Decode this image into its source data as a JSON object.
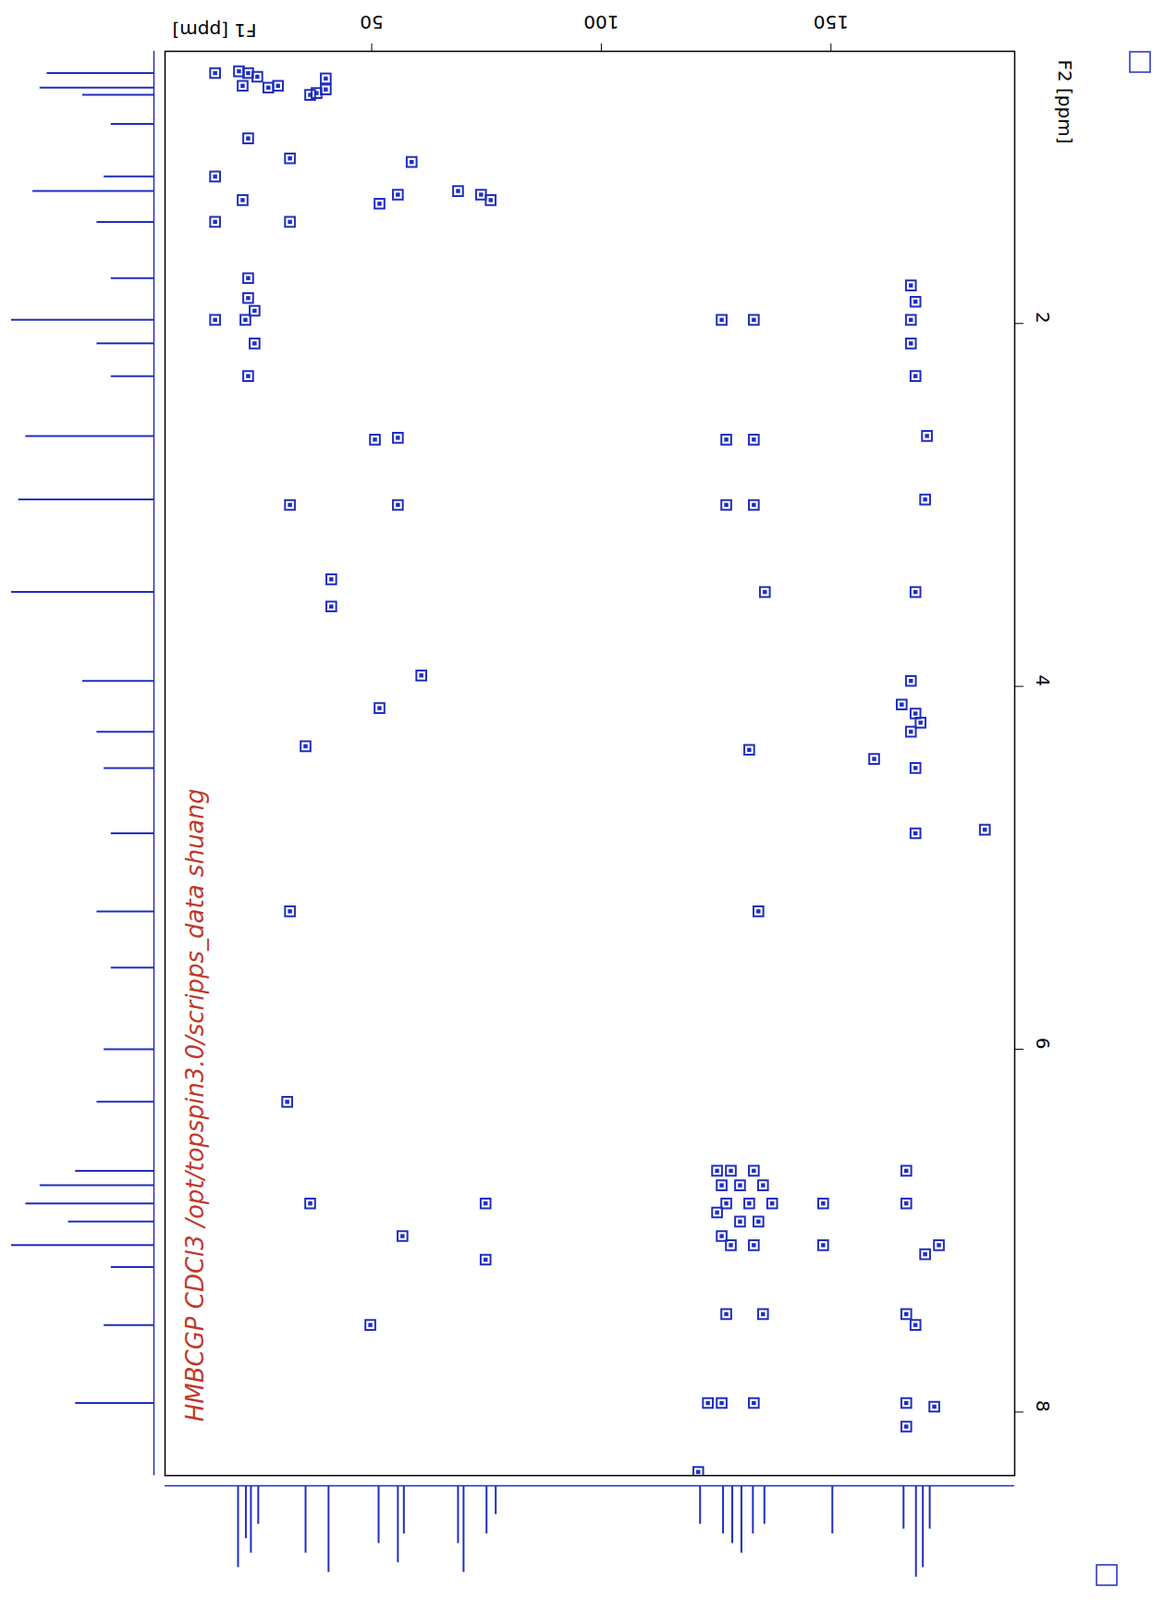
{
  "chart_data": {
    "type": "scatter",
    "annotation": "HMBCGP CDCl3 /opt/topspin3.0/scripps_data shuang",
    "xlabel": "F1 [ppm]",
    "ylabel": "F2 [ppm]",
    "xlim": [
      5,
      190
    ],
    "ylim": [
      0.5,
      8.35
    ],
    "xticks": [
      50,
      100,
      150
    ],
    "yticks": [
      2,
      4,
      6,
      8
    ],
    "color": "#1f2fbf",
    "x": [
      15.9,
      21.1,
      23.1,
      25.1,
      21.9,
      27.5,
      29.6,
      38.0,
      40.0,
      40.0,
      36.6,
      23.1,
      32.2,
      15.9,
      58.7,
      51.7,
      55.7,
      68.8,
      73.8,
      75.9,
      21.9,
      15.9,
      32.2,
      23.1,
      23.1,
      15.9,
      22.5,
      24.5,
      24.5,
      23.1,
      126.2,
      133.2,
      167.4,
      168.4,
      167.4,
      167.4,
      168.4,
      50.7,
      55.7,
      127.2,
      133.2,
      170.9,
      32.2,
      55.7,
      127.2,
      133.2,
      170.5,
      41.2,
      41.2,
      135.6,
      168.4,
      60.8,
      51.7,
      167.4,
      165.4,
      168.4,
      169.5,
      167.4,
      35.6,
      132.2,
      159.4,
      168.4,
      168.4,
      183.5,
      32.2,
      134.2,
      31.6,
      125.2,
      128.2,
      133.2,
      126.2,
      130.2,
      135.2,
      127.2,
      132.2,
      137.2,
      125.2,
      130.2,
      134.2,
      126.2,
      128.2,
      133.2,
      36.6,
      74.8,
      148.3,
      148.3,
      166.4,
      166.4,
      173.5,
      56.7,
      74.8,
      170.5,
      49.7,
      127.2,
      135.2,
      166.4,
      168.4,
      123.2,
      126.2,
      133.2,
      166.4,
      172.5,
      166.4,
      121.1
    ],
    "y": [
      0.62,
      0.61,
      0.62,
      0.64,
      0.69,
      0.7,
      0.69,
      0.73,
      0.65,
      0.71,
      0.74,
      0.98,
      1.09,
      1.19,
      1.11,
      1.34,
      1.29,
      1.27,
      1.29,
      1.32,
      1.32,
      1.44,
      1.44,
      1.75,
      1.86,
      1.98,
      1.98,
      1.93,
      2.11,
      2.29,
      1.98,
      1.98,
      1.98,
      1.88,
      1.79,
      2.11,
      2.29,
      2.64,
      2.63,
      2.64,
      2.64,
      2.62,
      3.0,
      3.0,
      3.0,
      3.0,
      2.97,
      3.41,
      3.56,
      3.48,
      3.48,
      3.94,
      4.12,
      3.97,
      4.1,
      4.15,
      4.2,
      4.25,
      4.33,
      4.35,
      4.4,
      4.45,
      4.81,
      4.79,
      5.24,
      5.24,
      6.29,
      6.67,
      6.67,
      6.67,
      6.75,
      6.75,
      6.75,
      6.85,
      6.85,
      6.85,
      6.9,
      6.95,
      6.95,
      7.03,
      7.08,
      7.08,
      6.85,
      6.85,
      6.85,
      7.08,
      6.67,
      6.85,
      7.08,
      7.03,
      7.16,
      7.13,
      7.52,
      7.46,
      7.46,
      7.46,
      7.52,
      7.95,
      7.95,
      7.95,
      7.95,
      7.97,
      8.08,
      8.33
    ],
    "projections": {
      "F2": {
        "x": [
          0.62,
          0.7,
          0.74,
          0.9,
          1.19,
          1.27,
          1.44,
          1.75,
          1.98,
          2.11,
          2.29,
          2.62,
          2.97,
          3.48,
          3.97,
          4.25,
          4.45,
          4.81,
          5.24,
          5.55,
          6.0,
          6.29,
          6.67,
          6.75,
          6.85,
          6.95,
          7.08,
          7.2,
          7.52,
          7.95
        ],
        "values": [
          0.75,
          0.8,
          0.5,
          0.3,
          0.35,
          0.85,
          0.4,
          0.3,
          1.0,
          0.4,
          0.3,
          0.9,
          0.95,
          1.0,
          0.5,
          0.4,
          0.35,
          0.3,
          0.4,
          0.3,
          0.35,
          0.4,
          0.55,
          0.8,
          0.9,
          0.6,
          1.0,
          0.3,
          0.35,
          0.55
        ]
      },
      "F1": {
        "x": [
          20.9,
          22.6,
          23.7,
          25.3,
          35.6,
          40.6,
          51.5,
          55.7,
          57.0,
          68.8,
          70.0,
          75.0,
          77.0,
          121.5,
          126.5,
          128.5,
          130.5,
          133.0,
          135.5,
          150.3,
          165.8,
          168.5,
          170.0,
          171.5
        ],
        "values": [
          0.85,
          0.55,
          0.7,
          0.4,
          0.7,
          0.9,
          0.6,
          0.8,
          0.5,
          0.6,
          0.9,
          0.5,
          0.3,
          0.4,
          0.5,
          0.6,
          0.7,
          0.5,
          0.4,
          0.5,
          0.45,
          0.95,
          0.85,
          0.45
        ]
      }
    }
  }
}
